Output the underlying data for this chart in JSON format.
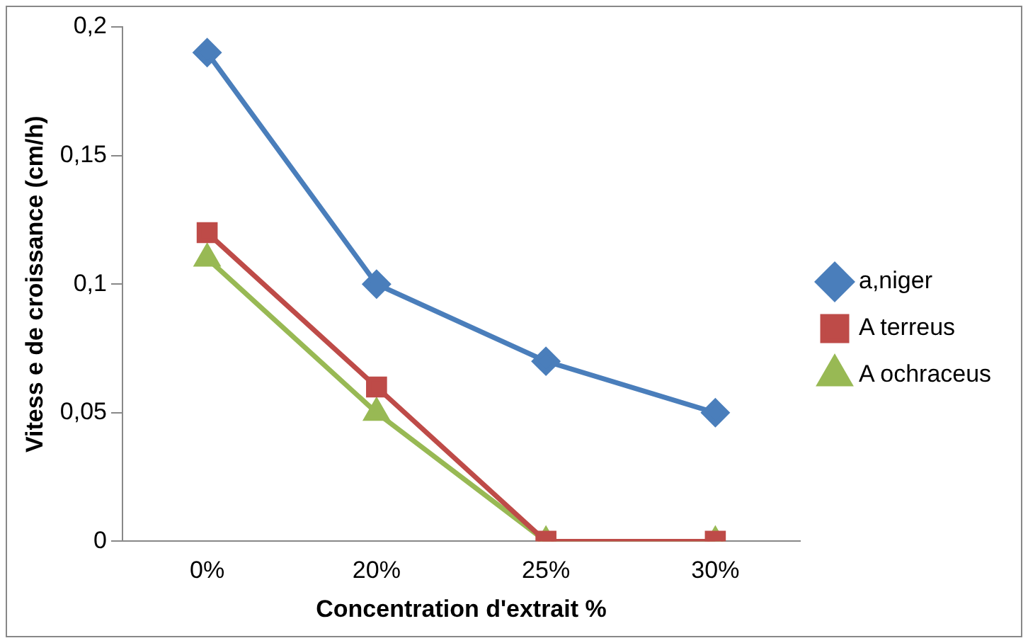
{
  "chart_data": {
    "type": "line",
    "xlabel": "Concentration d'extrait %",
    "ylabel": "Vitess e de croissance (cm/h)",
    "categories": [
      "0%",
      "20%",
      "25%",
      "30%"
    ],
    "series": [
      {
        "name": "a,niger",
        "color": "#4a7ebb",
        "marker": "diamond",
        "values": [
          0.19,
          0.1,
          0.07,
          0.05
        ]
      },
      {
        "name": "A terreus",
        "color": "#be4b48",
        "marker": "square",
        "values": [
          0.12,
          0.06,
          0,
          0
        ]
      },
      {
        "name": "A ochraceus",
        "color": "#98b954",
        "marker": "triangle",
        "values": [
          0.11,
          0.05,
          0,
          0
        ]
      }
    ],
    "ylim": [
      0,
      0.2
    ],
    "yticks": [
      {
        "value": 0,
        "label": "0"
      },
      {
        "value": 0.05,
        "label": "0,05"
      },
      {
        "value": 0.1,
        "label": "0,1"
      },
      {
        "value": 0.15,
        "label": "0,15"
      },
      {
        "value": 0.2,
        "label": "0,2"
      }
    ],
    "grid": false,
    "legend": "right",
    "line_style": "solid"
  }
}
